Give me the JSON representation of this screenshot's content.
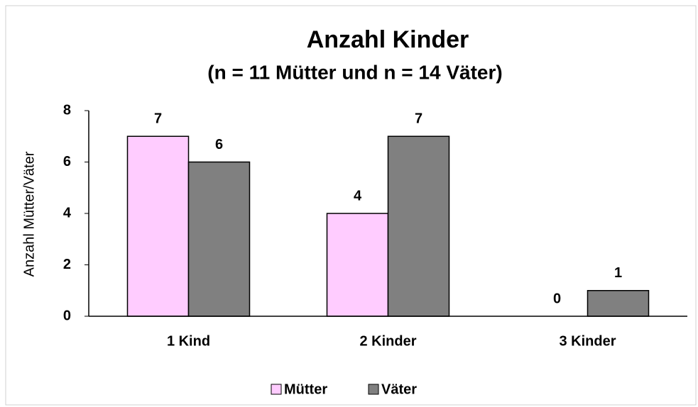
{
  "chart_data": {
    "type": "bar",
    "title": "Anzahl Kinder",
    "subtitle": "(n = 11 Mütter und n = 14 Väter)",
    "y_label": "Anzahl Mütter/Väter",
    "categories": [
      "1 Kind",
      "2 Kinder",
      "3 Kinder"
    ],
    "series": [
      {
        "name": "Mütter",
        "color": "#ffccff",
        "values": [
          7,
          4,
          0
        ]
      },
      {
        "name": "Väter",
        "color": "#808080",
        "values": [
          6,
          7,
          1
        ]
      }
    ],
    "ylim": [
      0,
      8
    ],
    "yticks": [
      0,
      2,
      4,
      6,
      8
    ],
    "grid": false,
    "legend": "bottom"
  }
}
